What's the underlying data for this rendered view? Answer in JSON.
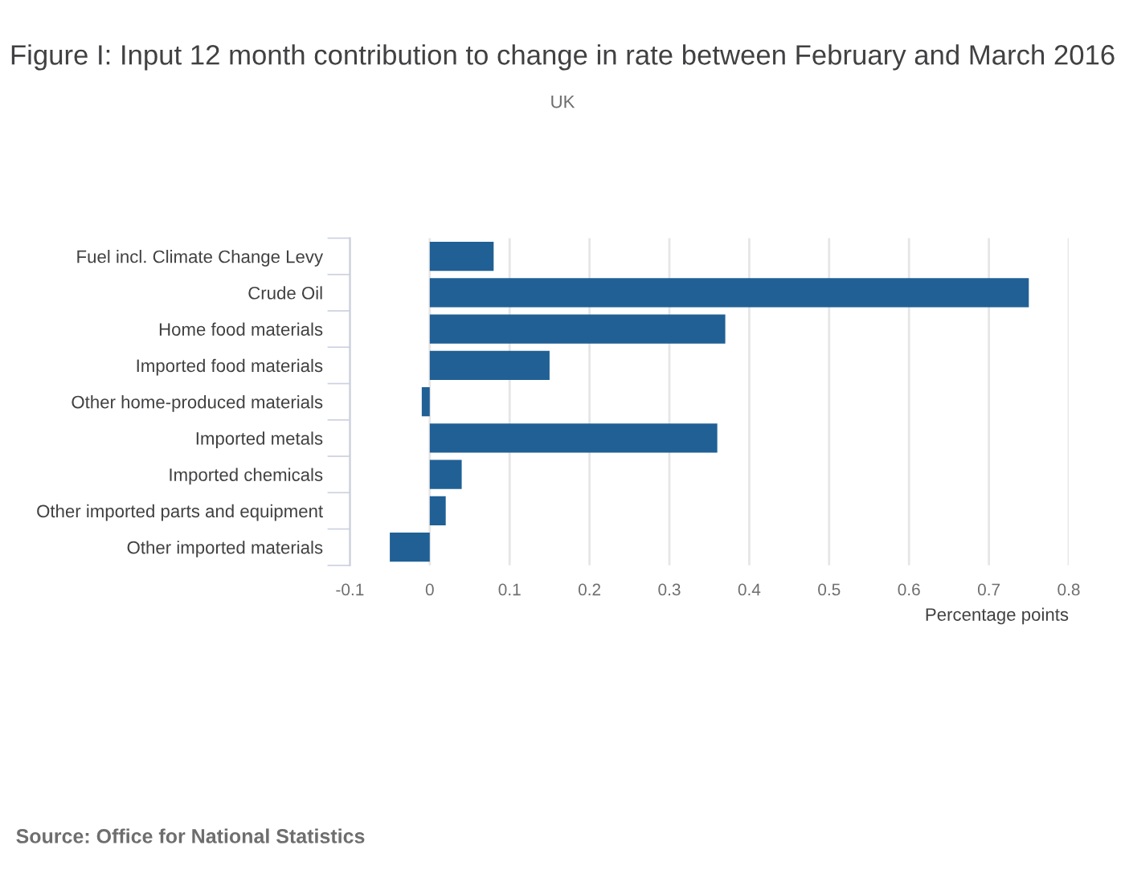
{
  "chart_data": {
    "type": "bar",
    "orientation": "horizontal",
    "title": "Figure I: Input 12 month contribution to change in rate between February and March 2016",
    "subtitle": "UK",
    "xlabel": "Percentage points",
    "categories": [
      "Fuel incl. Climate Change Levy",
      "Crude Oil",
      "Home food materials",
      "Imported food materials",
      "Other home-produced materials",
      "Imported metals",
      "Imported chemicals",
      "Other imported parts and equipment",
      "Other imported materials"
    ],
    "values": [
      0.08,
      0.75,
      0.37,
      0.15,
      -0.01,
      0.36,
      0.04,
      0.02,
      -0.05
    ],
    "color": "#206095",
    "xlim": [
      -0.1,
      0.8
    ],
    "xticks": [
      -0.1,
      0,
      0.1,
      0.2,
      0.3,
      0.4,
      0.5,
      0.6,
      0.7,
      0.8
    ],
    "grid": "x",
    "legend": false,
    "annotations": [
      "Source: Office for National Statistics"
    ]
  }
}
